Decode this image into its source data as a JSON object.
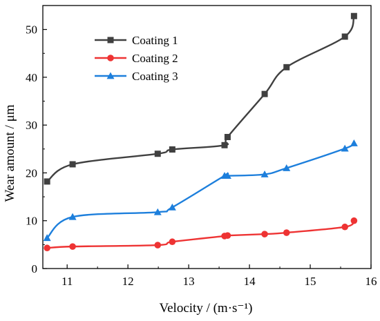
{
  "chart_data": {
    "type": "line",
    "xlabel": "Velocity / (m·s⁻¹)",
    "ylabel": "Wear amount / μm",
    "xlim": [
      10.6,
      16
    ],
    "ylim": [
      0,
      55
    ],
    "xticks": [
      11,
      12,
      13,
      14,
      15,
      16
    ],
    "yticks": [
      0,
      10,
      20,
      30,
      40,
      50
    ],
    "grid": false,
    "legend_position": "top-left",
    "series": [
      {
        "name": "Coating 1",
        "color": "#404040",
        "marker": "square",
        "x": [
          10.67,
          11.09,
          12.49,
          12.73,
          13.59,
          13.64,
          14.25,
          14.61,
          15.57,
          15.72
        ],
        "y": [
          18.2,
          21.8,
          24.0,
          24.9,
          25.8,
          27.5,
          36.5,
          42.1,
          48.5,
          52.8
        ]
      },
      {
        "name": "Coating 2",
        "color": "#ee3333",
        "marker": "circle",
        "x": [
          10.67,
          11.09,
          12.49,
          12.73,
          13.59,
          13.64,
          14.25,
          14.61,
          15.57,
          15.72
        ],
        "y": [
          4.3,
          4.6,
          4.9,
          5.6,
          6.8,
          6.9,
          7.2,
          7.5,
          8.7,
          10.0
        ]
      },
      {
        "name": "Coating 3",
        "color": "#1d7fdc",
        "marker": "triangle",
        "x": [
          10.67,
          11.09,
          12.49,
          12.73,
          13.59,
          13.64,
          14.25,
          14.61,
          15.57,
          15.72
        ],
        "y": [
          6.4,
          10.8,
          11.8,
          12.8,
          19.4,
          19.4,
          19.7,
          21.0,
          25.1,
          26.2
        ]
      }
    ]
  }
}
